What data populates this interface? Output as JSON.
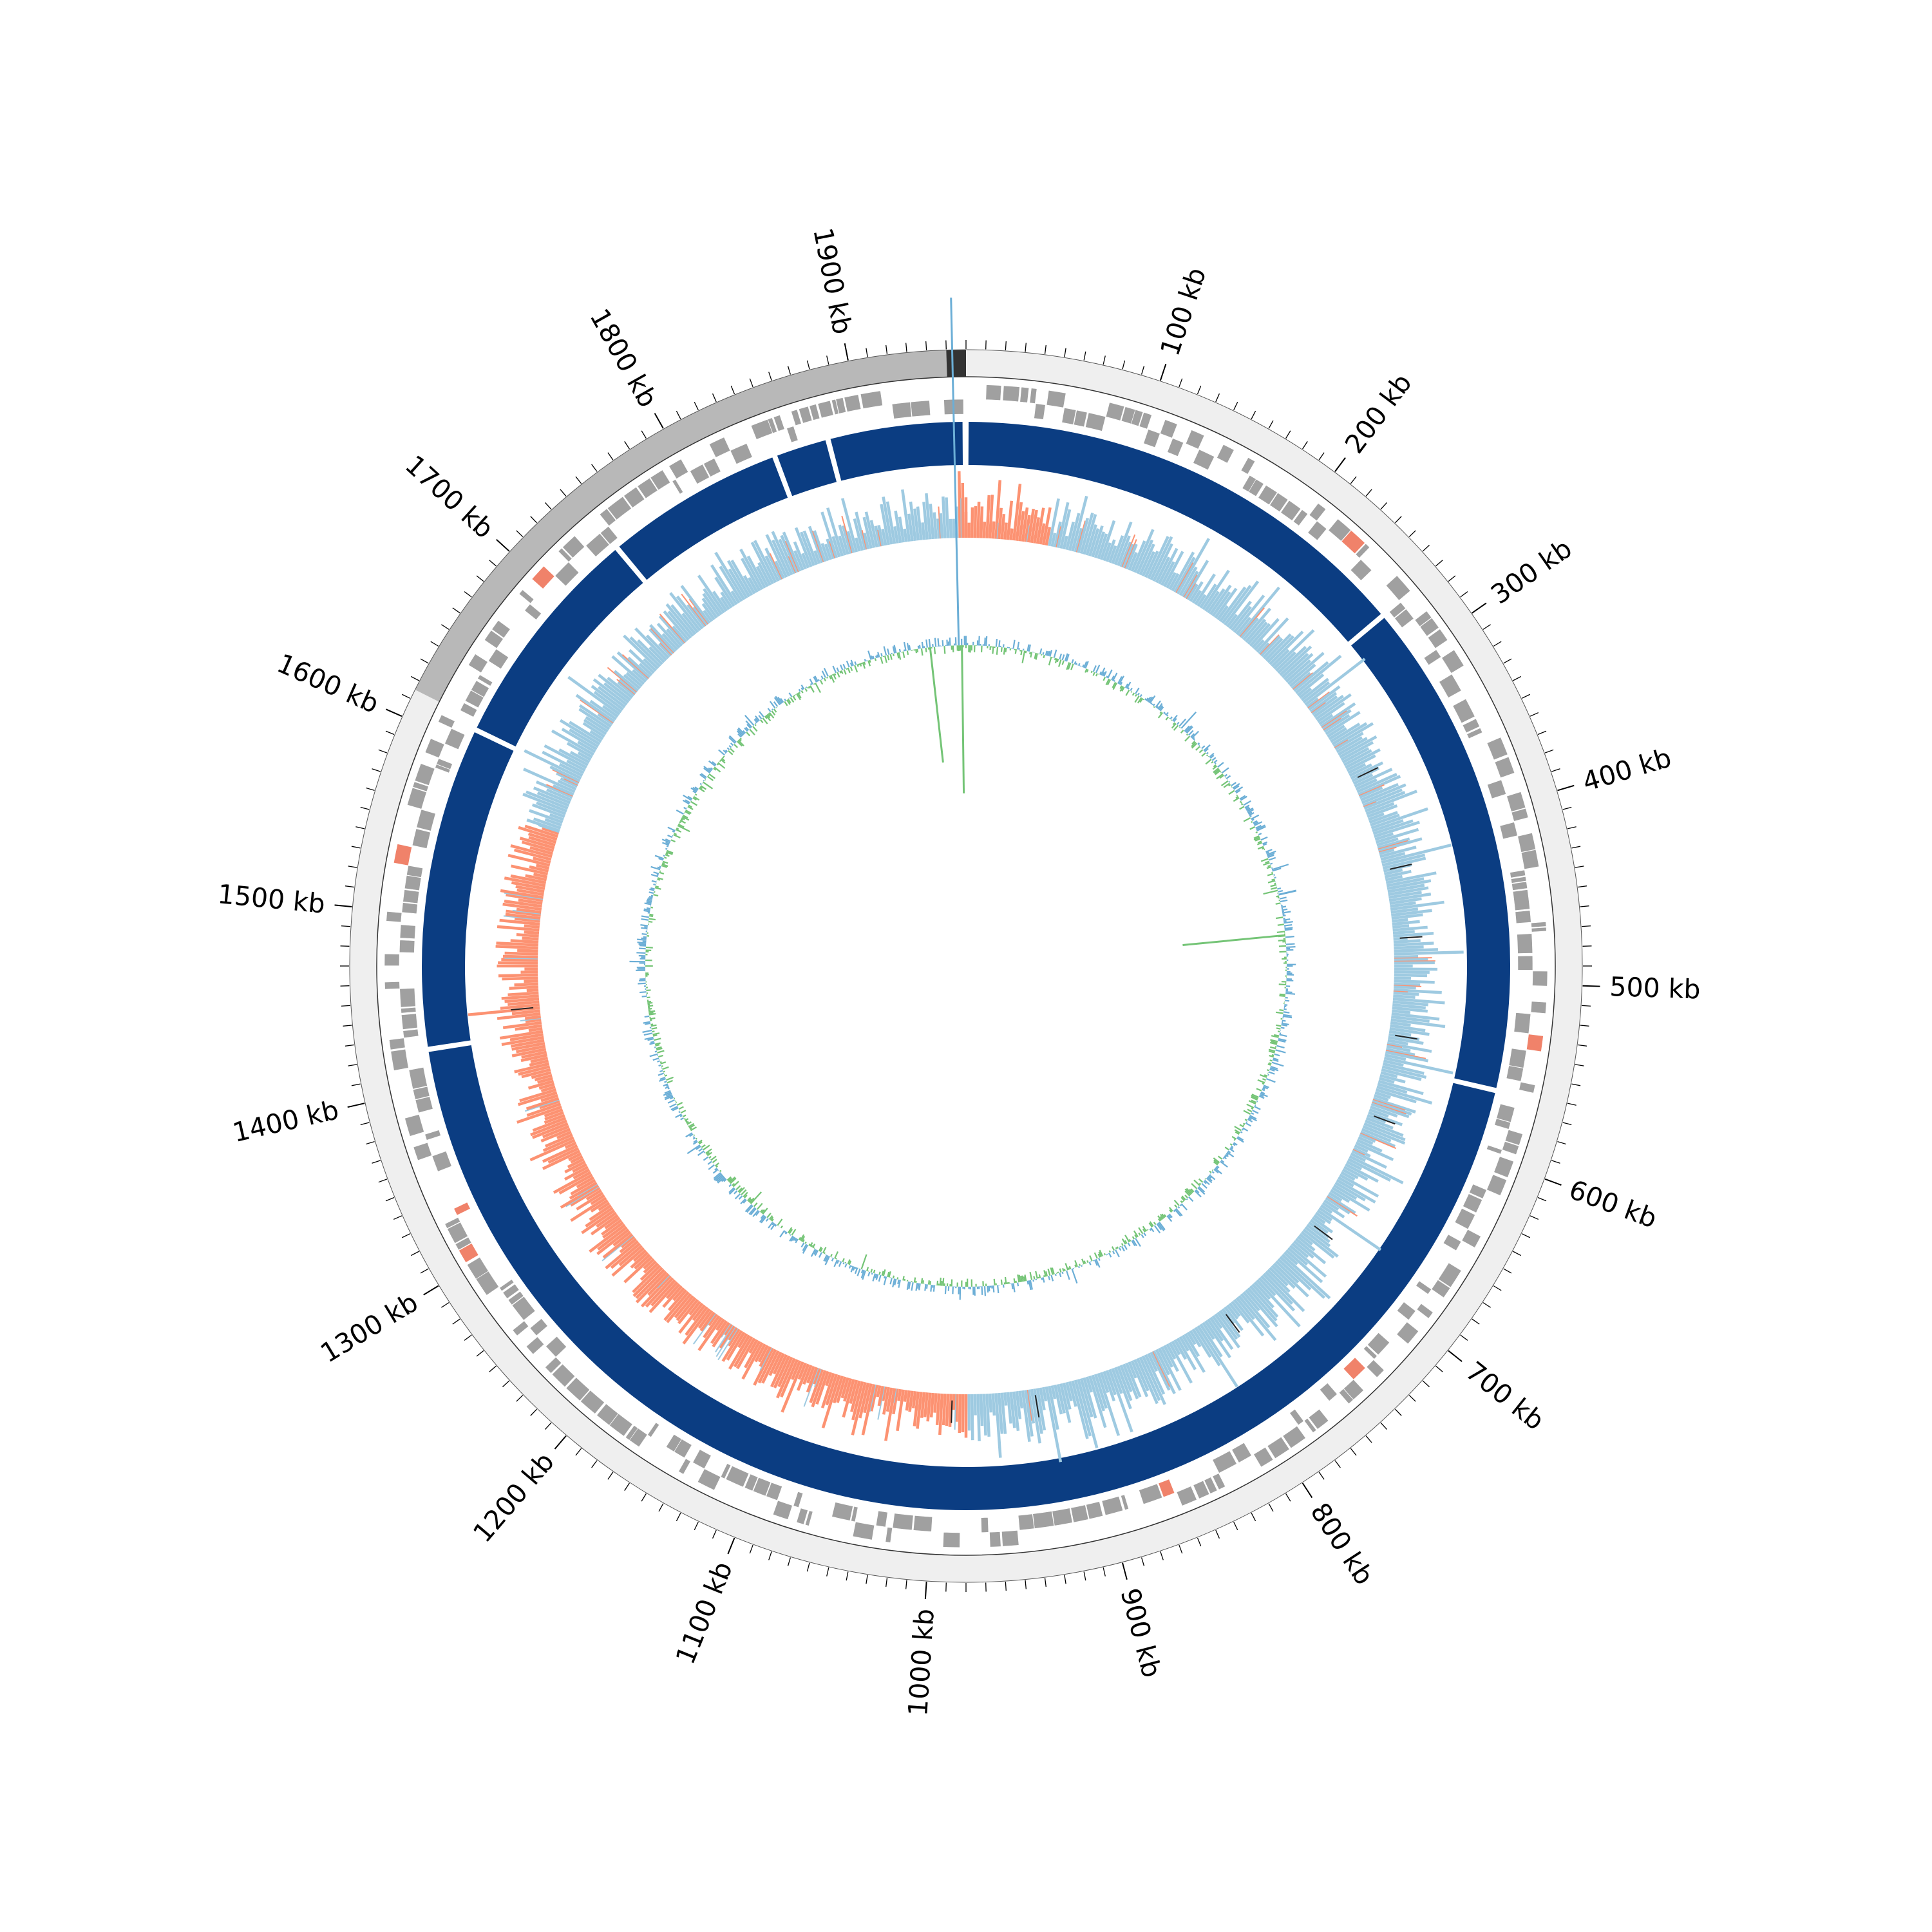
{
  "genome_plot": {
    "genome_length_kb": 1960,
    "origin_at_top": true,
    "tick_labels": [
      "100 kb",
      "200 kb",
      "300 kb",
      "400 kb",
      "500 kb",
      "600 kb",
      "700 kb",
      "800 kb",
      "900 kb",
      "1000 kb",
      "1100 kb",
      "1200 kb",
      "1300 kb",
      "1400 kb",
      "1500 kb",
      "1600 kb",
      "1700 kb",
      "1800 kb",
      "1900 kb"
    ],
    "major_tick_step_kb": 100,
    "minor_tick_step_kb": 10
  },
  "tracks": {
    "outer_band": {
      "base_color": "#efefef",
      "highlight_color": "#b8b8b8",
      "highlight_start_kb": 1615,
      "highlight_end_kb": 1960,
      "marker_color": "#333333"
    },
    "features": {
      "color": "#a0a0a0",
      "accent_color": "#f0826a"
    },
    "contigs": {
      "color": "#0b3d82",
      "gaps_kb": [
        1848,
        1880,
        1960,
        272,
        562,
        1422,
        1610,
        1743
      ]
    },
    "gc_skew": {
      "positive_color": "#9ecae1",
      "negative_color": "#fc9272",
      "dark_mark_color": "#222222"
    },
    "gc_content": {
      "above_color": "#6baed6",
      "below_color": "#74c476"
    }
  }
}
